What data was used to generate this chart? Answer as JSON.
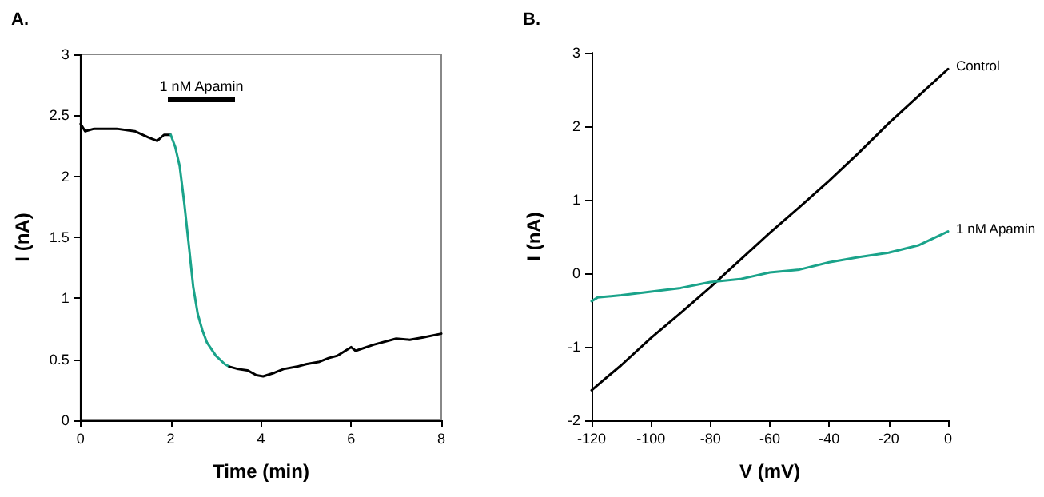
{
  "chart_data": [
    {
      "type": "line",
      "title": "A.",
      "xlabel": "Time (min)",
      "ylabel": "I (nA)",
      "xlim": [
        0,
        8
      ],
      "xticks": [
        0,
        2,
        4,
        6,
        8
      ],
      "ylim": [
        0,
        3
      ],
      "yticks": [
        0,
        0.5,
        1,
        1.5,
        2,
        2.5,
        3
      ],
      "grid": false,
      "legend": false,
      "marker": "none",
      "annotations": [
        "1 nM Apamin"
      ],
      "series": [
        {
          "color": "#000000",
          "x": [
            0,
            0.1,
            0.3,
            0.8,
            1.2,
            1.5,
            1.7,
            1.85,
            2.0
          ],
          "values": [
            2.43,
            2.37,
            2.39,
            2.39,
            2.37,
            2.32,
            2.29,
            2.34,
            2.34
          ]
        },
        {
          "color": "#1aa38a",
          "x": [
            2.0,
            2.1,
            2.2,
            2.3,
            2.4,
            2.5,
            2.6,
            2.7,
            2.8,
            3.0,
            3.2,
            3.3
          ],
          "values": [
            2.34,
            2.24,
            2.08,
            1.78,
            1.44,
            1.09,
            0.87,
            0.74,
            0.64,
            0.53,
            0.46,
            0.44
          ]
        },
        {
          "color": "#000000",
          "x": [
            3.3,
            3.5,
            3.7,
            3.9,
            4.05,
            4.3,
            4.5,
            4.8,
            5.0,
            5.3,
            5.5,
            5.7,
            6.0,
            6.1,
            6.5,
            7.0,
            7.3,
            7.6,
            8.0
          ],
          "values": [
            0.44,
            0.42,
            0.41,
            0.37,
            0.36,
            0.39,
            0.42,
            0.44,
            0.46,
            0.48,
            0.51,
            0.53,
            0.6,
            0.57,
            0.62,
            0.67,
            0.66,
            0.68,
            0.71
          ]
        }
      ]
    },
    {
      "type": "line",
      "title": "B.",
      "xlabel": "V (mV)",
      "ylabel": "I (nA)",
      "xlim": [
        -120,
        0
      ],
      "xticks": [
        -120,
        -100,
        -80,
        -60,
        -40,
        -20,
        0
      ],
      "ylim": [
        -2,
        3
      ],
      "yticks": [
        -2,
        -1,
        0,
        1,
        2,
        3
      ],
      "grid": false,
      "legend": false,
      "marker": "none",
      "series": [
        {
          "name": "Control",
          "color": "#000000",
          "x": [
            -120,
            -110,
            -100,
            -90,
            -80,
            -70,
            -60,
            -50,
            -40,
            -30,
            -20,
            -10,
            0
          ],
          "values": [
            -1.59,
            -1.25,
            -0.88,
            -0.54,
            -0.19,
            0.18,
            0.55,
            0.9,
            1.26,
            1.64,
            2.04,
            2.41,
            2.78
          ]
        },
        {
          "name": "1 nM Apamin",
          "color": "#1aa38a",
          "x": [
            -120,
            -118,
            -110,
            -100,
            -90,
            -80,
            -70,
            -60,
            -50,
            -40,
            -30,
            -20,
            -10,
            0
          ],
          "values": [
            -0.38,
            -0.33,
            -0.3,
            -0.25,
            -0.2,
            -0.12,
            -0.08,
            0.01,
            0.05,
            0.15,
            0.22,
            0.28,
            0.38,
            0.57
          ]
        }
      ]
    }
  ]
}
